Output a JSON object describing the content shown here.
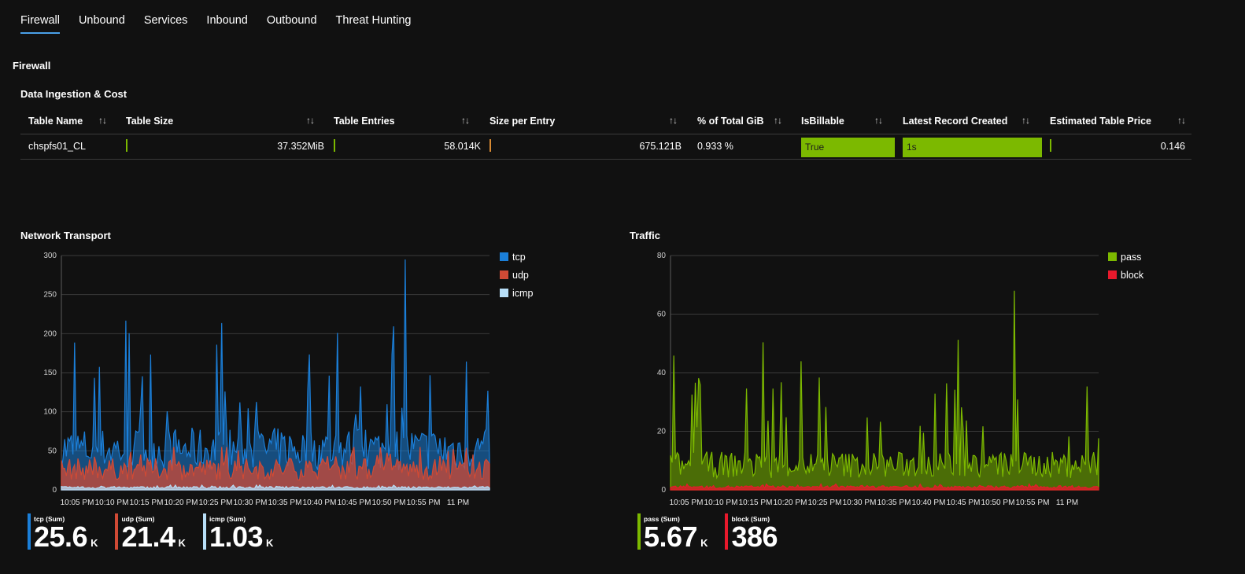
{
  "tabs": [
    "Firewall",
    "Unbound",
    "Services",
    "Inbound",
    "Outbound",
    "Threat Hunting"
  ],
  "section_title": "Firewall",
  "ingestion": {
    "title": "Data Ingestion & Cost",
    "columns": [
      "Table Name",
      "Table Size",
      "Table Entries",
      "Size per Entry",
      "% of Total GiB",
      "IsBillable",
      "Latest Record Created",
      "Estimated Table Price"
    ],
    "sort_icon": "↑↓",
    "row": {
      "table_name": "chspfs01_CL",
      "table_size": "37.352MiB",
      "table_entries": "58.014K",
      "size_per_entry": "675.121B",
      "pct_total": "0.933 %",
      "is_billable": "True",
      "latest_record": "1s",
      "price": "0.146"
    },
    "colors": {
      "accent_green": "#7cb900",
      "accent_orange": "#d88a33"
    }
  },
  "chart_data": [
    {
      "type": "area",
      "title": "Network Transport",
      "x_ticks": [
        "10:05 PM",
        "10:10 PM",
        "10:15 PM",
        "10:20 PM",
        "10:25 PM",
        "10:30 PM",
        "10:35 PM",
        "10:40 PM",
        "10:45 PM",
        "10:50 PM",
        "10:55 PM",
        "11 PM"
      ],
      "y_ticks": [
        "0",
        "50",
        "100",
        "150",
        "200",
        "250",
        "300"
      ],
      "ylim": [
        0,
        300
      ],
      "series": [
        {
          "name": "tcp",
          "color": "#1b7fd9",
          "baseline": 55,
          "spike_max": 295
        },
        {
          "name": "udp",
          "color": "#d04a35",
          "baseline": 28,
          "spike_max": 55
        },
        {
          "name": "icmp",
          "color": "#b7def7",
          "baseline": 3,
          "spike_max": 6
        }
      ],
      "tiles": [
        {
          "label": "tcp (Sum)",
          "value": "25.6",
          "unit": "K",
          "color": "#1b7fd9"
        },
        {
          "label": "udp (Sum)",
          "value": "21.4",
          "unit": "K",
          "color": "#d04a35"
        },
        {
          "label": "icmp (Sum)",
          "value": "1.03",
          "unit": "K",
          "color": "#b7def7"
        }
      ]
    },
    {
      "type": "area",
      "title": "Traffic",
      "x_ticks": [
        "10:05 PM",
        "10:10 PM",
        "10:15 PM",
        "10:20 PM",
        "10:25 PM",
        "10:30 PM",
        "10:35 PM",
        "10:40 PM",
        "10:45 PM",
        "10:50 PM",
        "10:55 PM",
        "11 PM"
      ],
      "y_ticks": [
        "0",
        "20",
        "40",
        "60",
        "80"
      ],
      "ylim": [
        0,
        80
      ],
      "series": [
        {
          "name": "pass",
          "color": "#7cb900",
          "baseline": 9,
          "spike_max": 68
        },
        {
          "name": "block",
          "color": "#e8192c",
          "baseline": 1,
          "spike_max": 2
        }
      ],
      "tiles": [
        {
          "label": "pass (Sum)",
          "value": "5.67",
          "unit": "K",
          "color": "#7cb900"
        },
        {
          "label": "block (Sum)",
          "value": "386",
          "unit": "",
          "color": "#e8192c"
        }
      ]
    }
  ]
}
